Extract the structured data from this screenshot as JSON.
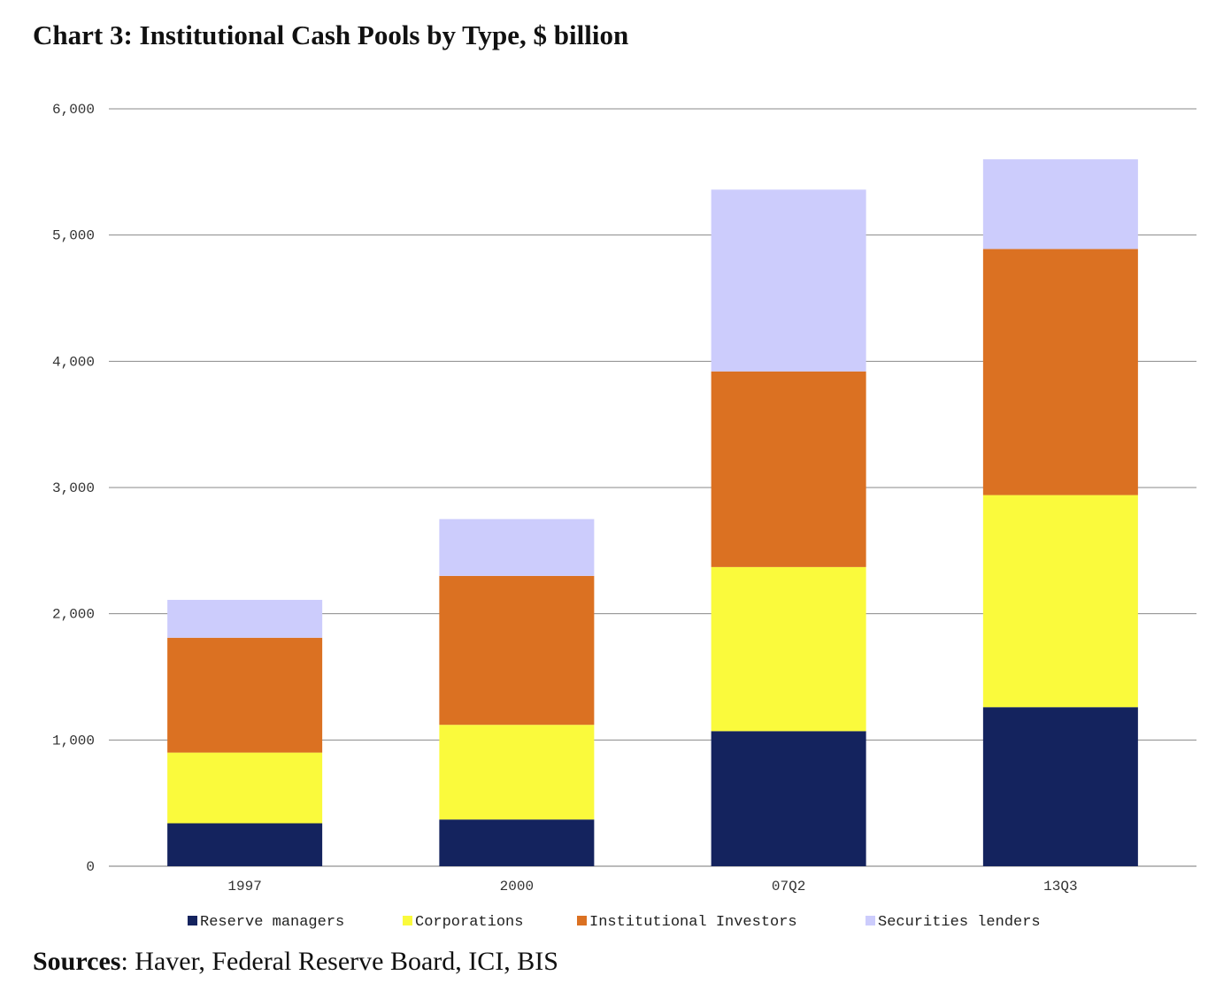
{
  "chart_data": {
    "type": "bar",
    "stacked": true,
    "title": "Chart 3: Institutional Cash Pools by Type, $ billion",
    "xlabel": "",
    "ylabel": "",
    "ylim": [
      0,
      6000
    ],
    "yticks": [
      0,
      1000,
      2000,
      3000,
      4000,
      5000,
      6000
    ],
    "ytick_labels": [
      "0",
      "1,000",
      "2,000",
      "3,000",
      "4,000",
      "5,000",
      "6,000"
    ],
    "grid": true,
    "legend_position": "bottom",
    "categories": [
      "1997",
      "2000",
      "07Q2",
      "13Q3"
    ],
    "series": [
      {
        "name": "Reserve managers",
        "color": "#14235e",
        "values": [
          340,
          370,
          1070,
          1260
        ]
      },
      {
        "name": "Corporations",
        "color": "#fafa3c",
        "values": [
          560,
          750,
          1300,
          1680
        ]
      },
      {
        "name": "Institutional Investors",
        "color": "#db7122",
        "values": [
          910,
          1180,
          1550,
          1950
        ]
      },
      {
        "name": "Securities lenders",
        "color": "#ccccfc",
        "values": [
          300,
          450,
          1440,
          710
        ]
      }
    ]
  },
  "sources": {
    "label": "Sources",
    "text": ": Haver, Federal Reserve Board, ICI, BIS"
  }
}
